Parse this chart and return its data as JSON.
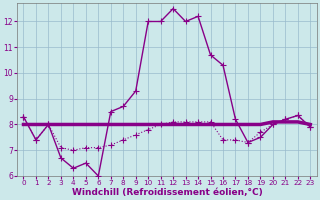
{
  "xlabel": "Windchill (Refroidissement éolien,°C)",
  "bg_color": "#cce8ea",
  "line_color": "#880088",
  "grid_color": "#99bbcc",
  "xlim": [
    -0.5,
    23.5
  ],
  "ylim": [
    6,
    12.7
  ],
  "xticks": [
    0,
    1,
    2,
    3,
    4,
    5,
    6,
    7,
    8,
    9,
    10,
    11,
    12,
    13,
    14,
    15,
    16,
    17,
    18,
    19,
    20,
    21,
    22,
    23
  ],
  "yticks": [
    6,
    7,
    8,
    9,
    10,
    11,
    12
  ],
  "line1_x": [
    0,
    1,
    2,
    3,
    4,
    5,
    6,
    7,
    8,
    9,
    10,
    11,
    12,
    13,
    14,
    15,
    16,
    17,
    18,
    19,
    20,
    21,
    22,
    23
  ],
  "line1_y": [
    8.3,
    7.4,
    8.0,
    6.7,
    6.3,
    6.5,
    6.0,
    8.5,
    8.7,
    9.3,
    12.0,
    12.0,
    12.5,
    12.0,
    12.2,
    10.7,
    10.3,
    8.2,
    7.3,
    7.5,
    8.0,
    8.2,
    8.35,
    7.9
  ],
  "line2_x": [
    0,
    1,
    2,
    3,
    4,
    5,
    6,
    7,
    8,
    9,
    10,
    11,
    12,
    13,
    14,
    15,
    16,
    17,
    18,
    19,
    20,
    21,
    22,
    23
  ],
  "line2_y": [
    8.0,
    8.0,
    8.0,
    8.0,
    8.0,
    8.0,
    8.0,
    8.0,
    8.0,
    8.0,
    8.0,
    8.0,
    8.0,
    8.0,
    8.0,
    8.0,
    8.0,
    8.0,
    8.0,
    8.0,
    8.1,
    8.1,
    8.1,
    8.0
  ],
  "line3_x": [
    0,
    1,
    2,
    3,
    4,
    5,
    6,
    7,
    8,
    9,
    10,
    11,
    12,
    13,
    14,
    15,
    16,
    17,
    18,
    19,
    20,
    21,
    22,
    23
  ],
  "line3_y": [
    8.3,
    7.4,
    8.0,
    7.1,
    7.0,
    7.1,
    7.1,
    7.2,
    7.4,
    7.6,
    7.8,
    8.0,
    8.1,
    8.1,
    8.1,
    8.1,
    7.4,
    7.4,
    7.3,
    7.7,
    8.0,
    8.2,
    8.35,
    7.9
  ],
  "line1_lw": 1.0,
  "line2_lw": 2.5,
  "line3_lw": 0.8,
  "xlabel_fontsize": 6.5,
  "tick_fontsize": 5.5
}
